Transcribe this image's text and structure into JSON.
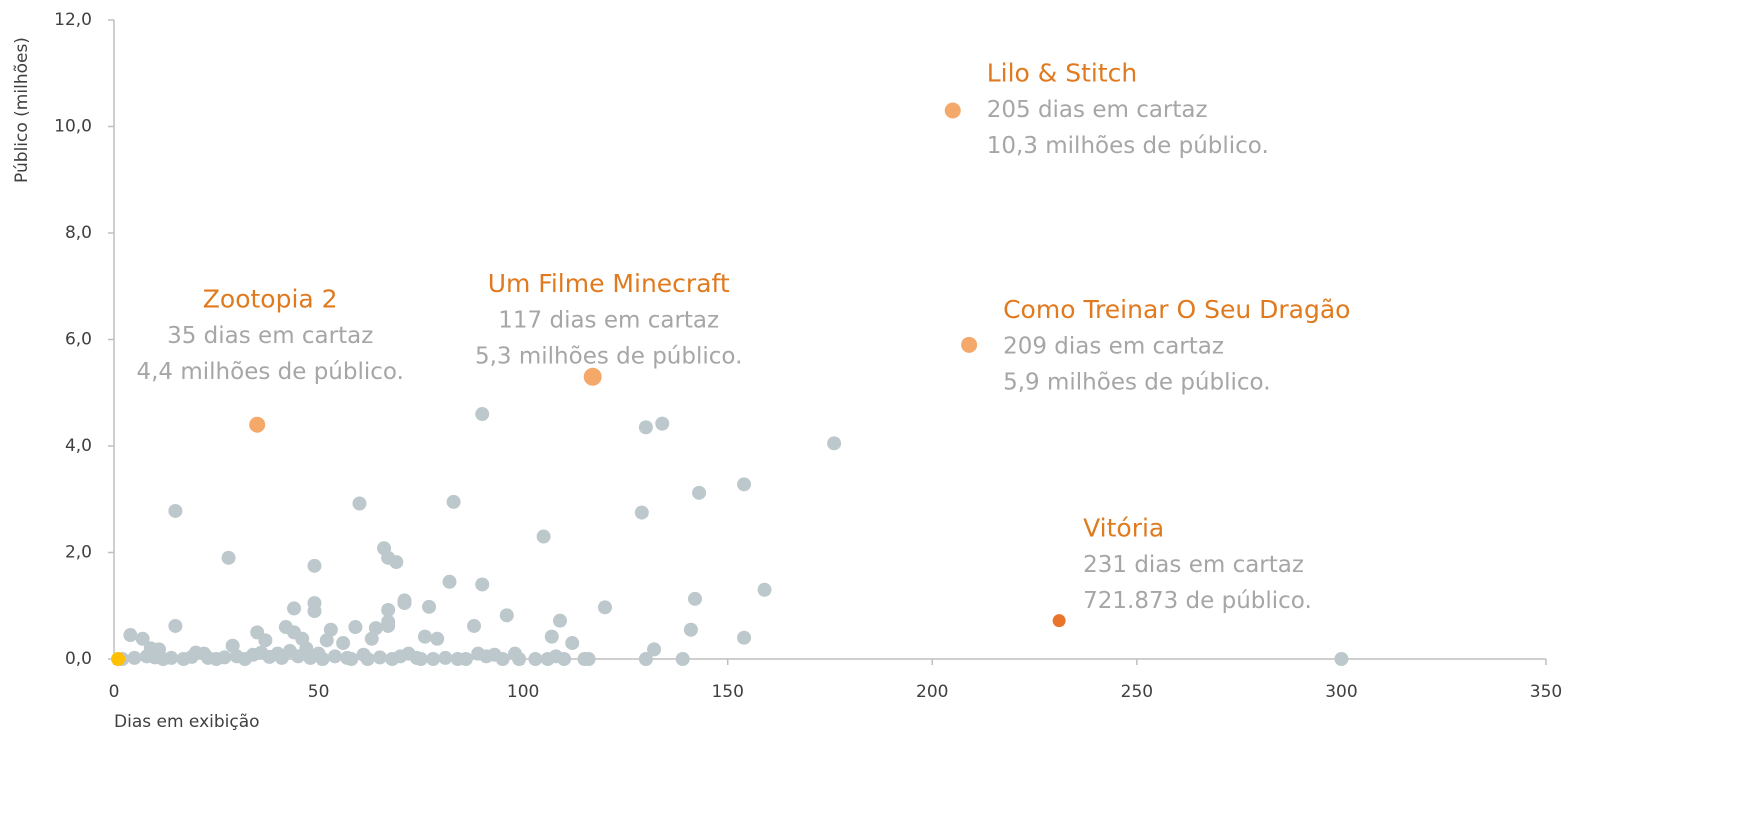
{
  "chart_data": {
    "type": "scatter",
    "y_label": "Público (milhões)",
    "x_label": "Dias em exibição",
    "xlim": [
      0,
      350
    ],
    "xticks": [
      0,
      50,
      100,
      150,
      200,
      250,
      300,
      350
    ],
    "ylim": [
      0,
      12
    ],
    "yticks": [
      {
        "value": 0,
        "label": "0,0"
      },
      {
        "value": 2,
        "label": "2,0"
      },
      {
        "value": 4,
        "label": "4,0"
      },
      {
        "value": 6,
        "label": "6,0"
      },
      {
        "value": 8,
        "label": "8,0"
      },
      {
        "value": 10,
        "label": "10,0"
      },
      {
        "value": 12,
        "label": "12,0"
      }
    ],
    "color": "#bcc8cc",
    "x": [
      4,
      7,
      9,
      11,
      15,
      15,
      20,
      22,
      28,
      29,
      35,
      37,
      40,
      42,
      44,
      44,
      46,
      49,
      49,
      49,
      52,
      53,
      56,
      59,
      60,
      63,
      64,
      66,
      67,
      67,
      67,
      67,
      69,
      71,
      71,
      77,
      76,
      79,
      82,
      83,
      88,
      90,
      90,
      96,
      105,
      107,
      109,
      112,
      120,
      129,
      130,
      132,
      134,
      141,
      142,
      143,
      154,
      154,
      159,
      176,
      139,
      130,
      300,
      2,
      5,
      8,
      10,
      12,
      14,
      17,
      19,
      23,
      25,
      27,
      30,
      32,
      34,
      36,
      38,
      41,
      43,
      45,
      47,
      48,
      50,
      51,
      54,
      57,
      58,
      61,
      62,
      65,
      68,
      70,
      72,
      74,
      75,
      78,
      81,
      84,
      86,
      89,
      91,
      93,
      95,
      98,
      99,
      103,
      106,
      108,
      110,
      115,
      116
    ],
    "y": [
      0.45,
      0.38,
      0.2,
      0.18,
      2.78,
      0.62,
      0.12,
      0.1,
      1.9,
      0.25,
      0.5,
      0.35,
      0.1,
      0.6,
      0.95,
      0.5,
      0.38,
      1.75,
      1.05,
      0.9,
      0.35,
      0.55,
      0.3,
      0.6,
      2.92,
      0.38,
      0.58,
      2.08,
      1.9,
      0.92,
      0.7,
      0.62,
      1.82,
      1.1,
      1.05,
      0.98,
      0.42,
      0.38,
      1.45,
      2.95,
      0.62,
      4.6,
      1.4,
      0.82,
      2.3,
      0.42,
      0.72,
      0.3,
      0.97,
      2.75,
      4.35,
      0.18,
      4.42,
      0.55,
      1.13,
      3.12,
      3.28,
      0.4,
      1.3,
      4.05,
      0,
      0,
      0,
      0,
      0.02,
      0.05,
      0.03,
      0,
      0.02,
      0,
      0.04,
      0.02,
      0,
      0.03,
      0.05,
      0,
      0.08,
      0.12,
      0.04,
      0.02,
      0.15,
      0.05,
      0.2,
      0.02,
      0.1,
      0,
      0.05,
      0.02,
      0,
      0.08,
      0,
      0.03,
      0,
      0.05,
      0.1,
      0.02,
      0,
      0,
      0.02,
      0,
      0,
      0.1,
      0.05,
      0.08,
      0,
      0.1,
      0,
      0,
      0,
      0.05,
      0,
      0,
      0
    ],
    "marker": {
      "x": 1,
      "y": 0,
      "color": "#ffc000"
    },
    "highlights": [
      {
        "x": 35,
        "y": 4.4,
        "color": "#f4a96b",
        "title": "Zootopia 2",
        "lines": [
          "35 dias em cartaz",
          "4,4 milhões de público."
        ]
      },
      {
        "x": 117,
        "y": 5.3,
        "color": "#f4a96b",
        "title": "Um Filme Minecraft",
        "lines": [
          "117 dias em cartaz",
          "5,3 milhões de público."
        ]
      },
      {
        "x": 205,
        "y": 10.3,
        "color": "#f4a96b",
        "title": "Lilo & Stitch",
        "lines": [
          "205 dias em cartaz",
          "10,3 milhões de público."
        ]
      },
      {
        "x": 209,
        "y": 5.9,
        "color": "#f4a96b",
        "title": "Como Treinar O Seu Dragão",
        "lines": [
          "209 dias em cartaz",
          "5,9 milhões de público."
        ]
      },
      {
        "x": 231,
        "y": 0.72,
        "color": "#e9742b",
        "title": "Vitória",
        "lines": [
          "231 dias em cartaz",
          "721.873 de público."
        ]
      }
    ]
  }
}
